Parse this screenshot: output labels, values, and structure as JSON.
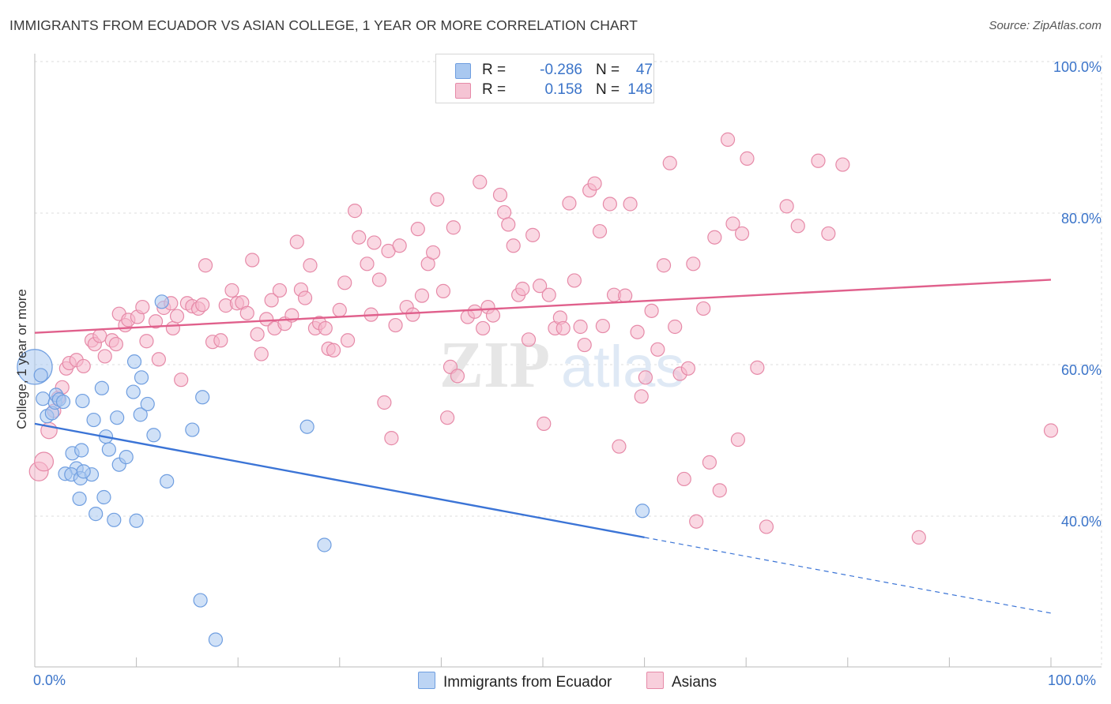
{
  "title": "IMMIGRANTS FROM ECUADOR VS ASIAN COLLEGE, 1 YEAR OR MORE CORRELATION CHART",
  "source": "Source: ZipAtlas.com",
  "watermark": {
    "zip": "ZIP",
    "atlas": "atlas"
  },
  "colors": {
    "blue_fill": "#a9c8f0",
    "blue_stroke": "#6f9ee0",
    "blue_line": "#3b74d6",
    "pink_fill": "#f5b8cc",
    "pink_stroke": "#e68aa8",
    "pink_line": "#e0608c",
    "grid": "#dddddd",
    "tick_text": "#3b74c9"
  },
  "legend_top": {
    "rows": [
      {
        "r_label": "R =",
        "r_value": "-0.286",
        "n_label": "N =",
        "n_value": "47"
      },
      {
        "r_label": "R =",
        "r_value": "0.158",
        "n_label": "N =",
        "n_value": "148"
      }
    ]
  },
  "legend_bottom": {
    "series": [
      "Immigrants from Ecuador",
      "Asians"
    ]
  },
  "chart_data": {
    "type": "scatter",
    "title": "IMMIGRANTS FROM ECUADOR VS ASIAN COLLEGE, 1 YEAR OR MORE CORRELATION CHART",
    "xlabel": "",
    "ylabel": "College, 1 year or more",
    "xlim": [
      0,
      100
    ],
    "ylim": [
      20,
      104
    ],
    "x_tick_labels": [
      "0.0%",
      "100.0%"
    ],
    "y_ticks": [
      40,
      60,
      80,
      100
    ],
    "y_tick_labels": [
      "40.0%",
      "60.0%",
      "80.0%",
      "100.0%"
    ],
    "grid": true,
    "series": [
      {
        "name": "Immigrants from Ecuador",
        "R": -0.286,
        "N": 47,
        "trend": {
          "x0": 0,
          "y0": 52.2,
          "x1": 60,
          "y1": 37.2,
          "dash_to_x": 100,
          "dash_to_y": 27.2
        },
        "points": [
          [
            0,
            59.7,
            2.6
          ],
          [
            0.6,
            58.6,
            1
          ],
          [
            0.8,
            55.5,
            1
          ],
          [
            1.2,
            53.2,
            1
          ],
          [
            1.7,
            53.6,
            1
          ],
          [
            2.0,
            55.0,
            1
          ],
          [
            2.1,
            56.0,
            1
          ],
          [
            2.4,
            55.4,
            1
          ],
          [
            2.8,
            55.1,
            1
          ],
          [
            3.7,
            48.3,
            1
          ],
          [
            4.1,
            46.3,
            1
          ],
          [
            4.6,
            48.7,
            1
          ],
          [
            3.0,
            45.6,
            1
          ],
          [
            3.6,
            45.5,
            1
          ],
          [
            4.5,
            45.0,
            1
          ],
          [
            5.6,
            45.5,
            1
          ],
          [
            4.8,
            45.9,
            1
          ],
          [
            4.4,
            42.3,
            1
          ],
          [
            6.8,
            42.5,
            1
          ],
          [
            6.0,
            40.3,
            1
          ],
          [
            7.8,
            39.5,
            1
          ],
          [
            10.0,
            39.4,
            1
          ],
          [
            4.7,
            55.2,
            1
          ],
          [
            5.8,
            52.7,
            1
          ],
          [
            6.6,
            56.9,
            1
          ],
          [
            7.0,
            50.5,
            1
          ],
          [
            7.3,
            48.8,
            1
          ],
          [
            8.1,
            53.0,
            1
          ],
          [
            8.3,
            46.8,
            1
          ],
          [
            9.0,
            47.8,
            1
          ],
          [
            9.7,
            56.4,
            1
          ],
          [
            9.8,
            60.4,
            1
          ],
          [
            10.4,
            53.4,
            1
          ],
          [
            10.5,
            58.3,
            1
          ],
          [
            11.1,
            54.8,
            1
          ],
          [
            11.7,
            50.7,
            1
          ],
          [
            12.5,
            68.3,
            1
          ],
          [
            13.0,
            44.6,
            1
          ],
          [
            15.5,
            51.4,
            1
          ],
          [
            16.5,
            55.7,
            1
          ],
          [
            16.3,
            28.9,
            1
          ],
          [
            17.8,
            23.7,
            1
          ],
          [
            26.8,
            51.8,
            1
          ],
          [
            28.5,
            36.2,
            1
          ],
          [
            59.8,
            40.7,
            1
          ]
        ]
      },
      {
        "name": "Asians",
        "R": 0.158,
        "N": 148,
        "trend": {
          "x0": 0,
          "y0": 64.2,
          "x1": 100,
          "y1": 71.2
        },
        "points": [
          [
            0.4,
            45.9,
            1.4
          ],
          [
            0.9,
            47.2,
            1.4
          ],
          [
            1.4,
            51.3,
            1.2
          ],
          [
            1.9,
            53.9,
            1
          ],
          [
            2.3,
            55.6,
            1
          ],
          [
            2.7,
            57.0,
            1
          ],
          [
            3.1,
            59.5,
            1
          ],
          [
            3.4,
            60.2,
            1
          ],
          [
            4.1,
            60.6,
            1
          ],
          [
            4.8,
            59.8,
            1
          ],
          [
            5.6,
            63.2,
            1
          ],
          [
            5.9,
            62.7,
            1
          ],
          [
            6.4,
            63.8,
            1
          ],
          [
            6.9,
            61.1,
            1
          ],
          [
            7.6,
            63.2,
            1
          ],
          [
            8.0,
            62.7,
            1
          ],
          [
            8.3,
            66.7,
            1
          ],
          [
            8.9,
            65.2,
            1
          ],
          [
            9.2,
            65.9,
            1
          ],
          [
            10.1,
            66.3,
            1
          ],
          [
            10.6,
            67.6,
            1
          ],
          [
            11.0,
            63.1,
            1
          ],
          [
            11.9,
            65.7,
            1
          ],
          [
            12.2,
            60.7,
            1
          ],
          [
            12.7,
            67.5,
            1
          ],
          [
            13.4,
            68.1,
            1
          ],
          [
            13.6,
            64.8,
            1
          ],
          [
            14.0,
            66.4,
            1
          ],
          [
            14.4,
            58.0,
            1
          ],
          [
            15.0,
            68.1,
            1
          ],
          [
            15.5,
            67.7,
            1
          ],
          [
            16.1,
            67.4,
            1
          ],
          [
            16.5,
            67.9,
            1
          ],
          [
            16.8,
            73.1,
            1
          ],
          [
            17.5,
            63.0,
            1
          ],
          [
            18.3,
            63.2,
            1
          ],
          [
            18.8,
            67.8,
            1
          ],
          [
            19.4,
            69.8,
            1
          ],
          [
            19.9,
            68.1,
            1
          ],
          [
            20.4,
            68.2,
            1
          ],
          [
            20.9,
            66.8,
            1
          ],
          [
            21.4,
            73.8,
            1
          ],
          [
            21.9,
            64.0,
            1
          ],
          [
            22.3,
            61.4,
            1
          ],
          [
            22.8,
            66.0,
            1
          ],
          [
            23.3,
            68.5,
            1
          ],
          [
            23.6,
            64.8,
            1
          ],
          [
            24.1,
            69.8,
            1
          ],
          [
            24.6,
            65.4,
            1
          ],
          [
            25.3,
            66.5,
            1
          ],
          [
            25.8,
            76.2,
            1
          ],
          [
            26.2,
            69.9,
            1
          ],
          [
            26.6,
            68.8,
            1
          ],
          [
            27.1,
            73.1,
            1
          ],
          [
            27.6,
            64.8,
            1
          ],
          [
            28.0,
            65.5,
            1
          ],
          [
            28.6,
            64.8,
            1
          ],
          [
            28.9,
            62.1,
            1
          ],
          [
            29.4,
            61.9,
            1
          ],
          [
            30.0,
            67.2,
            1
          ],
          [
            30.5,
            70.8,
            1
          ],
          [
            30.8,
            63.2,
            1
          ],
          [
            31.5,
            80.3,
            1
          ],
          [
            31.9,
            76.8,
            1
          ],
          [
            32.7,
            73.3,
            1
          ],
          [
            33.1,
            66.6,
            1
          ],
          [
            33.4,
            76.1,
            1
          ],
          [
            33.9,
            71.2,
            1
          ],
          [
            34.4,
            55.0,
            1
          ],
          [
            34.8,
            75.0,
            1
          ],
          [
            35.1,
            50.3,
            1
          ],
          [
            35.5,
            65.2,
            1
          ],
          [
            35.9,
            75.7,
            1
          ],
          [
            36.6,
            67.6,
            1
          ],
          [
            37.2,
            66.6,
            1
          ],
          [
            37.7,
            77.9,
            1
          ],
          [
            38.1,
            69.1,
            1
          ],
          [
            38.7,
            73.3,
            1
          ],
          [
            39.2,
            74.8,
            1
          ],
          [
            39.6,
            81.8,
            1
          ],
          [
            40.2,
            69.7,
            1
          ],
          [
            40.6,
            53.0,
            1
          ],
          [
            40.9,
            59.7,
            1
          ],
          [
            41.2,
            78.1,
            1
          ],
          [
            41.6,
            58.5,
            1
          ],
          [
            42.6,
            66.3,
            1
          ],
          [
            43.3,
            67.0,
            1
          ],
          [
            43.8,
            84.1,
            1
          ],
          [
            44.1,
            64.8,
            1
          ],
          [
            44.6,
            67.6,
            1
          ],
          [
            45.1,
            66.5,
            1
          ],
          [
            45.8,
            82.4,
            1
          ],
          [
            46.2,
            80.1,
            1
          ],
          [
            46.6,
            78.5,
            1
          ],
          [
            47.1,
            75.7,
            1
          ],
          [
            47.6,
            69.2,
            1
          ],
          [
            48.0,
            70.0,
            1
          ],
          [
            48.6,
            63.3,
            1
          ],
          [
            49.0,
            77.1,
            1
          ],
          [
            49.7,
            70.4,
            1
          ],
          [
            50.1,
            52.2,
            1
          ],
          [
            50.6,
            69.2,
            1
          ],
          [
            51.2,
            64.8,
            1
          ],
          [
            51.7,
            66.2,
            1
          ],
          [
            52.0,
            64.8,
            1
          ],
          [
            52.6,
            81.3,
            1
          ],
          [
            53.1,
            71.1,
            1
          ],
          [
            53.7,
            65.0,
            1
          ],
          [
            54.1,
            62.6,
            1
          ],
          [
            54.6,
            83.0,
            1
          ],
          [
            55.1,
            83.9,
            1
          ],
          [
            55.6,
            77.6,
            1
          ],
          [
            55.9,
            65.1,
            1
          ],
          [
            56.6,
            81.2,
            1
          ],
          [
            57.0,
            69.2,
            1
          ],
          [
            57.5,
            49.2,
            1
          ],
          [
            58.1,
            69.1,
            1
          ],
          [
            58.6,
            81.2,
            1
          ],
          [
            59.3,
            64.3,
            1
          ],
          [
            59.7,
            55.8,
            1
          ],
          [
            60.1,
            58.3,
            1
          ],
          [
            60.7,
            67.1,
            1
          ],
          [
            61.3,
            62.0,
            1
          ],
          [
            61.9,
            73.1,
            1
          ],
          [
            62.5,
            86.6,
            1
          ],
          [
            63.0,
            65.0,
            1
          ],
          [
            63.5,
            58.8,
            1
          ],
          [
            63.9,
            44.9,
            1
          ],
          [
            64.3,
            59.5,
            1
          ],
          [
            64.8,
            73.3,
            1
          ],
          [
            65.1,
            39.3,
            1
          ],
          [
            65.8,
            67.4,
            1
          ],
          [
            66.4,
            47.1,
            1
          ],
          [
            66.9,
            76.8,
            1
          ],
          [
            67.4,
            43.4,
            1
          ],
          [
            68.2,
            89.7,
            1
          ],
          [
            68.7,
            78.6,
            1
          ],
          [
            69.2,
            50.1,
            1
          ],
          [
            69.6,
            77.3,
            1
          ],
          [
            70.1,
            87.2,
            1
          ],
          [
            71.1,
            59.6,
            1
          ],
          [
            72.0,
            38.6,
            1
          ],
          [
            74.0,
            80.9,
            1
          ],
          [
            75.1,
            78.3,
            1
          ],
          [
            77.1,
            86.9,
            1
          ],
          [
            78.1,
            77.3,
            1
          ],
          [
            79.5,
            86.4,
            1
          ],
          [
            87.0,
            37.2,
            1
          ],
          [
            100.0,
            51.3,
            1
          ]
        ]
      }
    ]
  }
}
